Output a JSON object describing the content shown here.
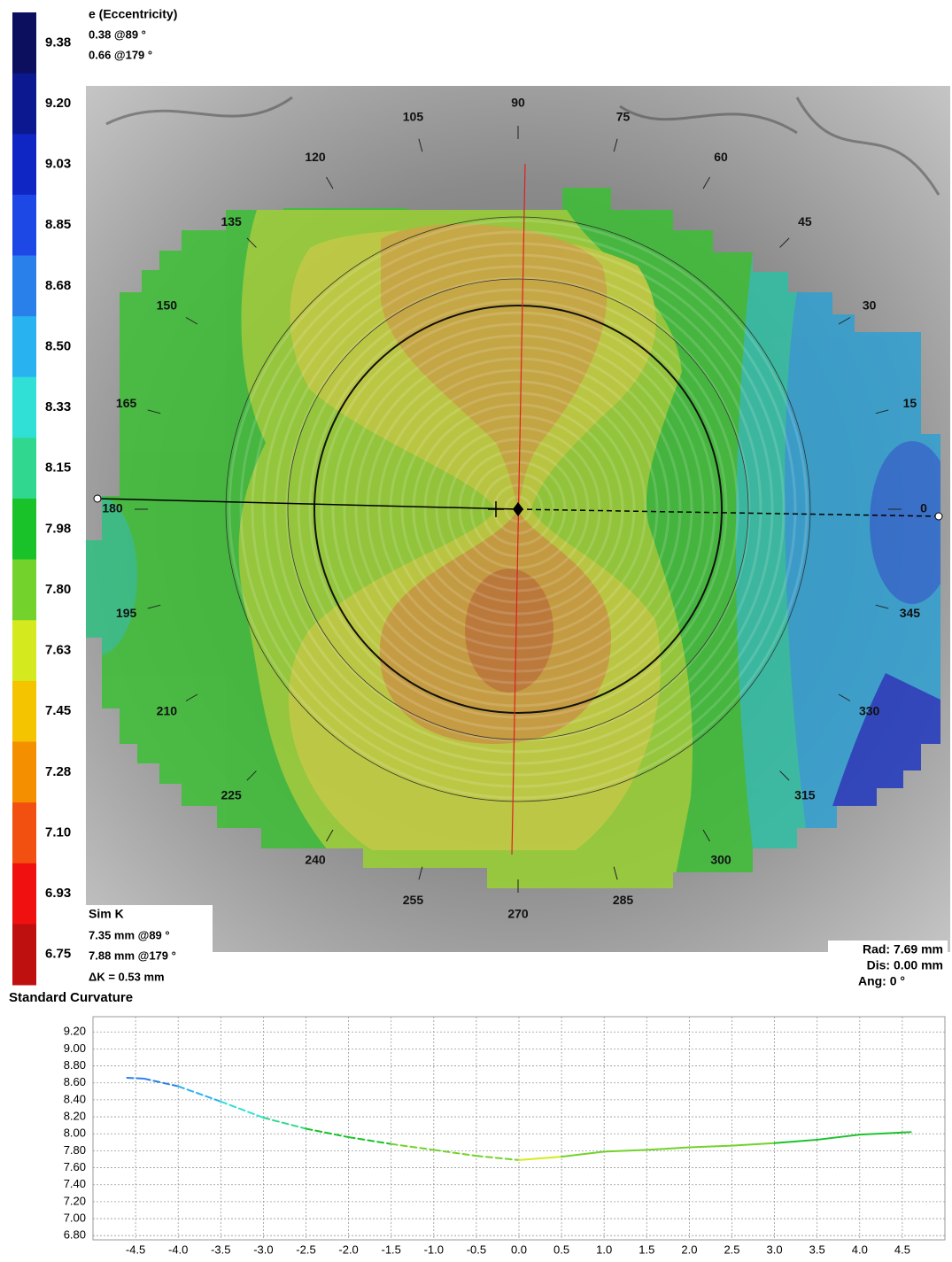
{
  "eccentricity": {
    "title": "e (Eccentricity)",
    "lines": [
      "0.38 @89 °",
      "0.66 @179 °"
    ]
  },
  "color_scale": {
    "ticks": [
      9.38,
      {
        "value": 9.2,
        "label": "9.20"
      },
      9.03,
      8.85,
      8.68,
      {
        "value": 8.5,
        "label": "8.50"
      },
      8.33,
      8.15,
      7.98,
      {
        "value": 7.8,
        "label": "7.80"
      },
      7.63,
      7.45,
      7.28,
      {
        "value": 7.1,
        "label": "7.10"
      },
      6.93,
      6.75
    ],
    "colors": [
      "#0b0f5e",
      "#0c188f",
      "#0f26c4",
      "#1e48e6",
      "#2a80ea",
      "#29b2f0",
      "#30e0d6",
      "#2fd88e",
      "#18c228",
      "#74d22c",
      "#d4ea1e",
      "#f5c400",
      "#f49000",
      "#f25010",
      "#f01010",
      "#bf1010"
    ]
  },
  "map": {
    "angle_labels": [
      0,
      15,
      30,
      45,
      60,
      75,
      90,
      105,
      120,
      135,
      150,
      165,
      180,
      195,
      210,
      225,
      240,
      255,
      270,
      285,
      300,
      315,
      330,
      345
    ],
    "sim_k": {
      "title": "Sim K",
      "lines": [
        "7.35 mm @89 °",
        "7.88 mm @179 °",
        "ΔK = 0.53 mm"
      ]
    },
    "position": [
      "Rad: 7.69 mm",
      "Dis: 0.00 mm",
      "Ang: 0 °"
    ]
  },
  "chart_data": {
    "type": "line",
    "title": "Standard Curvature",
    "x": [
      -4.6,
      -4.4,
      -4.0,
      -3.5,
      -3.0,
      -2.5,
      -2.0,
      -1.5,
      -1.0,
      -0.5,
      0.0,
      0.5,
      1.0,
      1.5,
      2.0,
      2.5,
      3.0,
      3.5,
      4.0,
      4.6
    ],
    "values": [
      8.66,
      8.65,
      8.56,
      8.38,
      8.19,
      8.06,
      7.96,
      7.88,
      7.81,
      7.74,
      7.69,
      7.73,
      7.79,
      7.81,
      7.84,
      7.86,
      7.89,
      7.93,
      7.99,
      8.02
    ],
    "xlim": [
      -5,
      5
    ],
    "ylim": [
      6.75,
      9.38
    ],
    "xticks": [
      -4.5,
      {
        "value": -4,
        "label": "-4.0"
      },
      -3.5,
      {
        "value": -3,
        "label": "-3.0"
      },
      -2.5,
      {
        "value": -2,
        "label": "-2.0"
      },
      -1.5,
      {
        "value": -1,
        "label": "-1.0"
      },
      -0.5,
      {
        "value": 0,
        "label": "0.0"
      },
      0.5,
      {
        "value": 1,
        "label": "1.0"
      },
      1.5,
      {
        "value": 2,
        "label": "2.0"
      },
      2.5,
      {
        "value": 3,
        "label": "3.0"
      },
      3.5,
      {
        "value": 4,
        "label": "4.0"
      },
      4.5
    ],
    "yticks": [
      {
        "value": 6.8,
        "label": "6.80"
      },
      {
        "value": 7.0,
        "label": "7.00"
      },
      {
        "value": 7.2,
        "label": "7.20"
      },
      {
        "value": 7.4,
        "label": "7.40"
      },
      {
        "value": 7.6,
        "label": "7.60"
      },
      {
        "value": 7.8,
        "label": "7.80"
      },
      {
        "value": 8.0,
        "label": "8.00"
      },
      {
        "value": 8.2,
        "label": "8.20"
      },
      {
        "value": 8.4,
        "label": "8.40"
      },
      {
        "value": 8.6,
        "label": "8.60"
      },
      {
        "value": 8.8,
        "label": "8.80"
      },
      {
        "value": 9.0,
        "label": "9.00"
      },
      {
        "value": 9.2,
        "label": "9.20"
      }
    ],
    "grid": true
  }
}
